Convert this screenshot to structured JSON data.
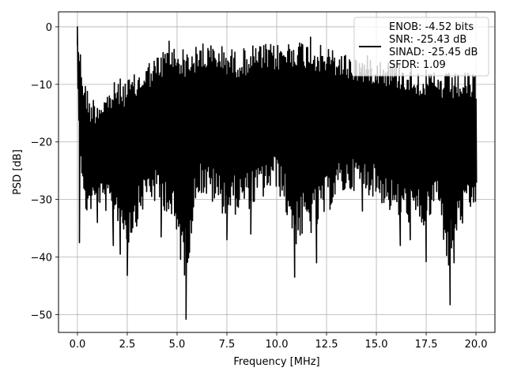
{
  "chart_data": {
    "type": "line",
    "title": "",
    "xlabel": "Frequency [MHz]",
    "ylabel": "PSD [dB]",
    "xlim": [
      -0.95,
      20.95
    ],
    "ylim": [
      -53.1,
      2.6
    ],
    "xticks": [
      0.0,
      2.5,
      5.0,
      7.5,
      10.0,
      12.5,
      15.0,
      17.5,
      20.0
    ],
    "xtick_labels": [
      "0.0",
      "2.5",
      "5.0",
      "7.5",
      "10.0",
      "12.5",
      "15.0",
      "17.5",
      "20.0"
    ],
    "yticks": [
      0,
      -10,
      -20,
      -30,
      -40,
      -50
    ],
    "ytick_labels": [
      "0",
      "−10",
      "−20",
      "−30",
      "−40",
      "−50"
    ],
    "grid": true,
    "legend_position": "top-right",
    "series": [
      {
        "name": "ENOB: -4.52 bits\nSNR: -25.43 dB\nSINAD: -25.45 dB\nSFDR: 1.09",
        "color": "#000000",
        "x_range": [
          0.0,
          20.0
        ],
        "x_step": 0.05,
        "upper_envelope": [
          [
            0.0,
            0.0
          ],
          [
            0.3,
            -8
          ],
          [
            0.6,
            -12
          ],
          [
            1.0,
            -12
          ],
          [
            1.5,
            -11
          ],
          [
            2.0,
            -9
          ],
          [
            2.5,
            -9
          ],
          [
            3.0,
            -8
          ],
          [
            3.5,
            -6
          ],
          [
            4.0,
            -5
          ],
          [
            4.6,
            -3
          ],
          [
            5.5,
            -4
          ],
          [
            6.3,
            -3
          ],
          [
            7.0,
            -3
          ],
          [
            8.0,
            -4
          ],
          [
            9.0,
            -3
          ],
          [
            10.0,
            -3
          ],
          [
            11.0,
            -2
          ],
          [
            12.0,
            -3
          ],
          [
            13.0,
            -4
          ],
          [
            14.0,
            -5
          ],
          [
            15.0,
            -5
          ],
          [
            16.0,
            -6
          ],
          [
            17.0,
            -7
          ],
          [
            18.0,
            -8
          ],
          [
            19.0,
            -8
          ],
          [
            20.0,
            -8
          ]
        ],
        "lower_envelope": [
          [
            0.0,
            -15
          ],
          [
            0.3,
            -37
          ],
          [
            1.0,
            -34
          ],
          [
            2.0,
            -38
          ],
          [
            2.5,
            -43
          ],
          [
            3.5,
            -34
          ],
          [
            4.5,
            -37
          ],
          [
            5.4,
            -51
          ],
          [
            6.0,
            -33
          ],
          [
            7.5,
            -38
          ],
          [
            8.8,
            -36
          ],
          [
            10.0,
            -32
          ],
          [
            10.9,
            -44
          ],
          [
            12.0,
            -41
          ],
          [
            13.0,
            -34
          ],
          [
            14.0,
            -32
          ],
          [
            15.0,
            -34
          ],
          [
            16.0,
            -38
          ],
          [
            17.0,
            -39
          ],
          [
            17.5,
            -40
          ],
          [
            18.0,
            -34
          ],
          [
            18.6,
            -48
          ],
          [
            19.0,
            -41
          ],
          [
            20.0,
            -35
          ]
        ],
        "dips": [
          {
            "x": 0.1,
            "y": -37.5
          },
          {
            "x": 1.0,
            "y": -34.0
          },
          {
            "x": 1.8,
            "y": -38.0
          },
          {
            "x": 2.15,
            "y": -39.5
          },
          {
            "x": 2.5,
            "y": -43.2
          },
          {
            "x": 4.2,
            "y": -36.5
          },
          {
            "x": 5.45,
            "y": -50.8
          },
          {
            "x": 7.5,
            "y": -37.0
          },
          {
            "x": 8.7,
            "y": -36.0
          },
          {
            "x": 10.9,
            "y": -43.5
          },
          {
            "x": 12.0,
            "y": -41.0
          },
          {
            "x": 14.3,
            "y": -32.0
          },
          {
            "x": 16.2,
            "y": -38.0
          },
          {
            "x": 16.7,
            "y": -37.0
          },
          {
            "x": 17.5,
            "y": -40.8
          },
          {
            "x": 18.7,
            "y": -48.3
          },
          {
            "x": 18.9,
            "y": -41.0
          }
        ],
        "peaks": [
          {
            "x": 0.0,
            "y": 0.0
          },
          {
            "x": 0.05,
            "y": -4.5
          },
          {
            "x": 4.6,
            "y": -2.5
          },
          {
            "x": 6.3,
            "y": -3.0
          },
          {
            "x": 11.7,
            "y": -1.8
          }
        ]
      }
    ]
  }
}
